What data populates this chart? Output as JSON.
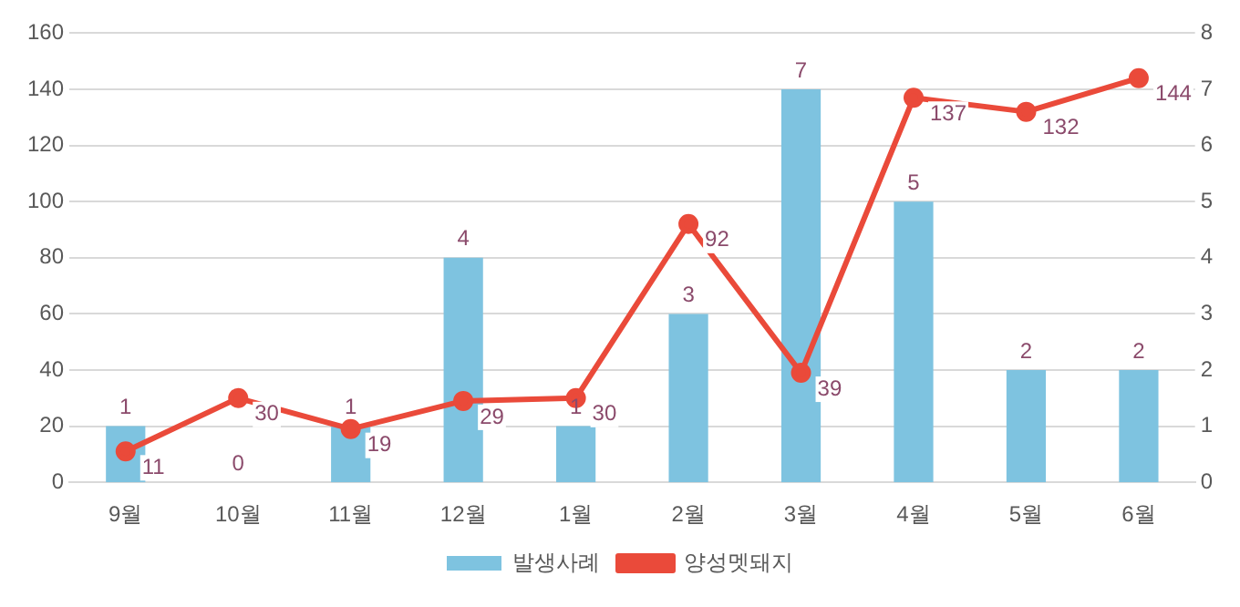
{
  "chart_data": {
    "type": "bar",
    "categories": [
      "9월",
      "10월",
      "11월",
      "12월",
      "1월",
      "2월",
      "3월",
      "4월",
      "5월",
      "6월"
    ],
    "series": [
      {
        "name": "발생사례",
        "axis": "y2",
        "color": "#7ec3e0",
        "values": [
          1,
          0,
          1,
          4,
          1,
          3,
          7,
          5,
          2,
          2
        ]
      },
      {
        "name": "양성멧돼지",
        "type": "line",
        "axis": "y",
        "color": "#ea4a3a",
        "marker": "circle",
        "values": [
          11,
          30,
          19,
          29,
          30,
          92,
          39,
          137,
          132,
          144
        ]
      }
    ],
    "ylim": [
      0,
      160
    ],
    "yticks": [
      0,
      20,
      40,
      60,
      80,
      100,
      120,
      140,
      160
    ],
    "y2lim": [
      0,
      8
    ],
    "y2ticks": [
      0,
      1,
      2,
      3,
      4,
      5,
      6,
      7,
      8
    ],
    "grid": "y",
    "legend": "bottom",
    "data_labels": true
  }
}
